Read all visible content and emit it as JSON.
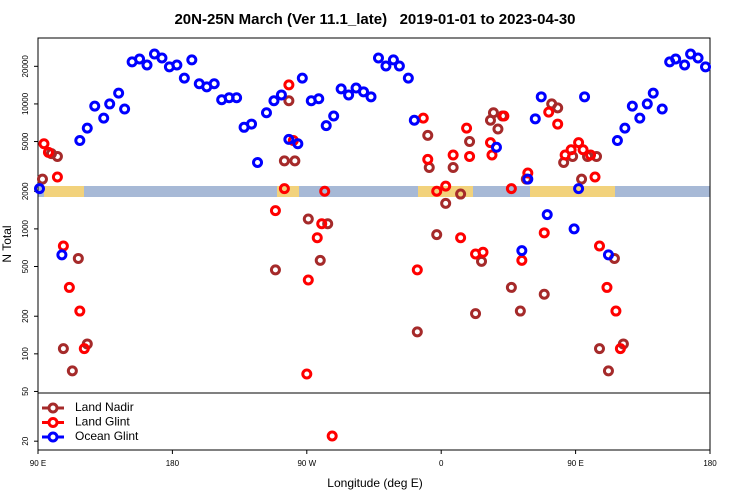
{
  "chart_data": {
    "type": "scatter",
    "title": "20N-25N March (Ver 11.1_late)   2019-01-01 to 2023-04-30",
    "x_label": "Longitude (deg E)",
    "y_label": "N Total",
    "log_scale_y": true,
    "legend": "bottom-left",
    "xlim": [
      90,
      540
    ],
    "xticks": [
      {
        "value": 90,
        "label": "90 E"
      },
      180,
      {
        "value": 270,
        "label": "90 W"
      },
      {
        "value": 360,
        "label": "0"
      },
      {
        "value": 450,
        "label": "90 E"
      },
      {
        "value": 540,
        "label": "180"
      }
    ],
    "ylim": [
      17,
      33700
    ],
    "yticks": [
      20,
      50,
      100,
      200,
      500,
      1000,
      2000,
      5000,
      10000,
      20000
    ],
    "series": [
      {
        "name": "Land Nadir",
        "color": "#a52a2a",
        "x": [
          93,
          99,
          103,
          107,
          113,
          117,
          123,
          249,
          255,
          258,
          262,
          271,
          279,
          284,
          344,
          351,
          352,
          357,
          363,
          368,
          373,
          379,
          383,
          387,
          393,
          395,
          398,
          401,
          407,
          413,
          417,
          429,
          434,
          438,
          442,
          448,
          454,
          458,
          464,
          466,
          472,
          476,
          482
        ],
        "values": [
          2500,
          4000,
          3800,
          110,
          73,
          580,
          120,
          470,
          3500,
          10600,
          3500,
          1200,
          560,
          1100,
          150,
          5600,
          3100,
          900,
          1600,
          3100,
          1900,
          5000,
          210,
          550,
          7400,
          8500,
          6300,
          8000,
          340,
          220,
          2500,
          300,
          10000,
          9300,
          3400,
          3800,
          2500,
          3800,
          3800,
          110,
          73,
          580,
          120
        ]
      },
      {
        "name": "Land Glint",
        "color": "#ff0000",
        "x": [
          94,
          97,
          103,
          107,
          111,
          118,
          121,
          249,
          255,
          258,
          261,
          270,
          271,
          277,
          280,
          282,
          287,
          344,
          348,
          351,
          357,
          363,
          368,
          373,
          377,
          379,
          383,
          388,
          393,
          394,
          402,
          407,
          414,
          418,
          429,
          432,
          438,
          443,
          447,
          452,
          455,
          460,
          463,
          466,
          471,
          477,
          480
        ],
        "values": [
          4800,
          4100,
          2600,
          730,
          340,
          220,
          110,
          1400,
          2100,
          14200,
          5100,
          69,
          390,
          850,
          1100,
          2000,
          22,
          470,
          7700,
          3600,
          2000,
          2200,
          3900,
          850,
          6400,
          3800,
          630,
          650,
          4900,
          3900,
          8000,
          2100,
          560,
          2800,
          930,
          8600,
          6900,
          3900,
          4300,
          4900,
          4300,
          3900,
          2600,
          730,
          340,
          220,
          110
        ]
      },
      {
        "name": "Ocean Glint",
        "color": "#0000ff",
        "x": [
          91,
          106,
          118,
          123,
          128,
          134,
          138,
          144,
          148,
          153,
          158,
          163,
          168,
          173,
          178,
          183,
          188,
          193,
          198,
          203,
          208,
          213,
          218,
          223,
          228,
          233,
          237,
          243,
          248,
          253,
          258,
          264,
          267,
          273,
          278,
          283,
          288,
          293,
          298,
          303,
          308,
          313,
          318,
          323,
          328,
          332,
          338,
          342,
          397,
          414,
          418,
          423,
          427,
          431,
          449,
          452,
          456,
          472,
          478,
          483,
          488,
          493,
          498,
          502,
          508,
          513,
          517,
          523,
          527,
          532,
          537
        ],
        "values": [
          2100,
          620,
          5100,
          6400,
          9600,
          7700,
          10000,
          12200,
          9100,
          21700,
          22900,
          20500,
          25100,
          23300,
          19800,
          20500,
          16100,
          22500,
          14500,
          13700,
          14500,
          10800,
          11200,
          11200,
          6500,
          6900,
          3400,
          8500,
          10600,
          11800,
          5200,
          4800,
          16100,
          10600,
          11000,
          6700,
          8000,
          13200,
          11800,
          13400,
          12500,
          11400,
          23300,
          20100,
          22500,
          20100,
          16100,
          7400,
          4500,
          670,
          2500,
          7600,
          11400,
          1300,
          1000,
          2100,
          11400,
          620,
          5100,
          6400,
          9600,
          7700,
          10000,
          12200,
          9100,
          21700,
          22900,
          20500,
          25100,
          23300,
          19800
        ]
      }
    ]
  }
}
